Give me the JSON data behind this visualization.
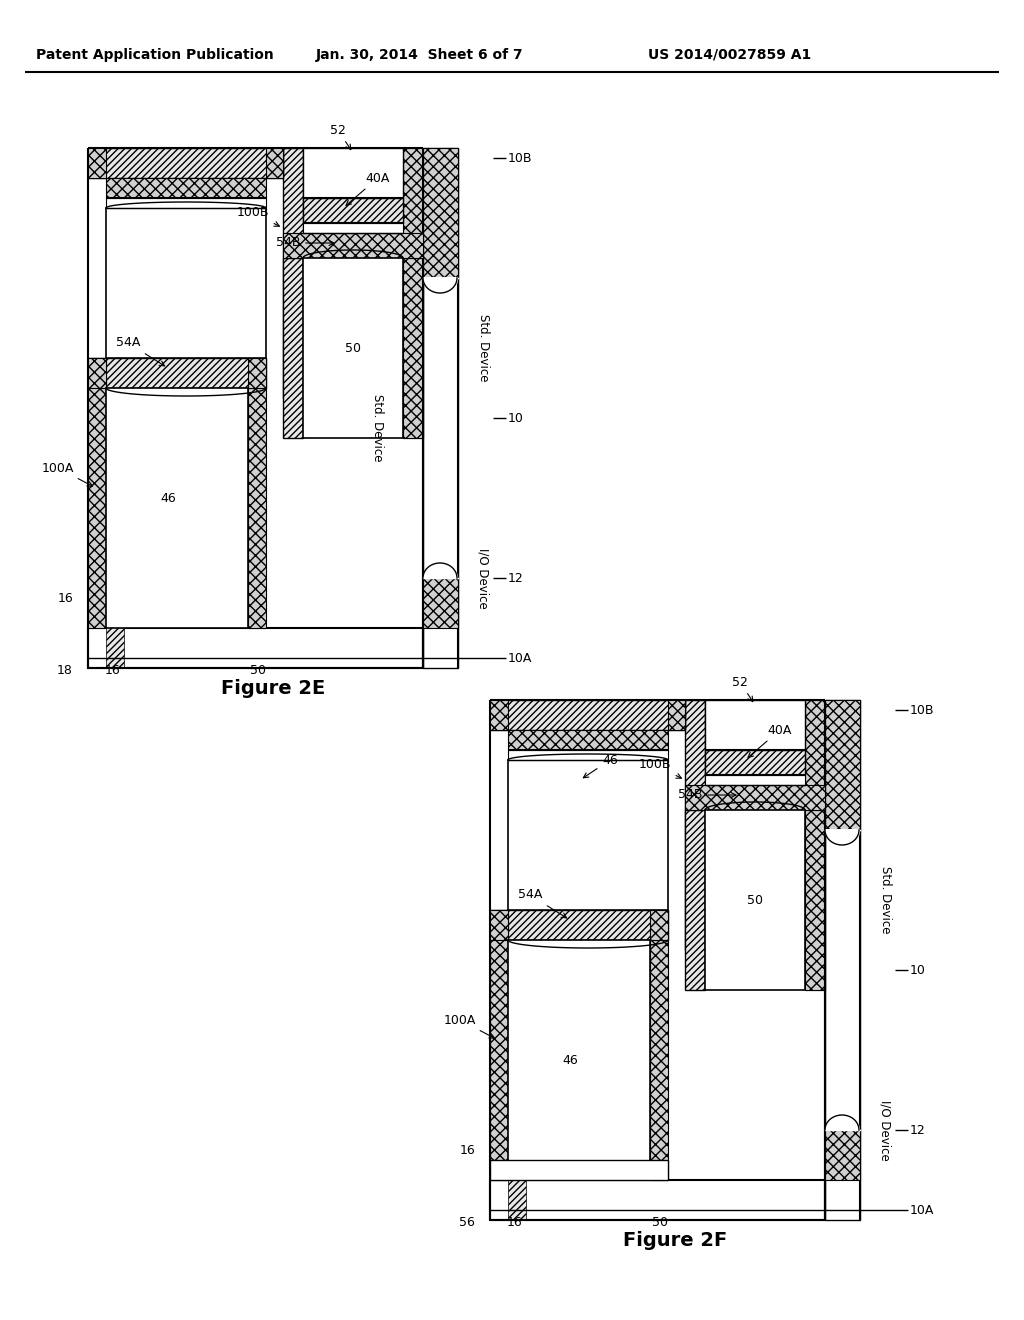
{
  "header_left": "Patent Application Publication",
  "header_mid": "Jan. 30, 2014  Sheet 6 of 7",
  "header_right": "US 2014/0027859 A1",
  "fig2e_label": "Figure 2E",
  "fig2f_label": "Figure 2F",
  "background": "#ffffff"
}
